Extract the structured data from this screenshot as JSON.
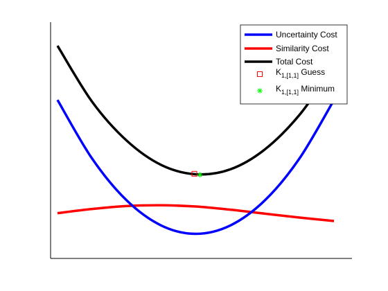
{
  "chart_data": {
    "type": "line",
    "title": "",
    "xlabel": "",
    "ylabel": "",
    "axes": {
      "xticks": false,
      "yticks": false,
      "grid": false
    },
    "x": [
      -1.0,
      -0.75,
      -0.5,
      -0.25,
      0.0,
      0.25,
      0.5,
      0.75,
      1.0
    ],
    "series": [
      {
        "name": "Uncertainty Cost",
        "color": "#0000ff",
        "values": [
          5.44,
          3.06,
          1.36,
          0.34,
          0.0,
          0.34,
          1.36,
          3.06,
          5.44
        ]
      },
      {
        "name": "Similarity Cost",
        "color": "#ff0000",
        "values": [
          0.84,
          1.01,
          1.13,
          1.16,
          1.11,
          0.98,
          0.82,
          0.66,
          0.52
        ]
      },
      {
        "name": "Total Cost",
        "color": "#000000",
        "values": [
          7.64,
          5.37,
          3.79,
          2.8,
          2.42,
          2.62,
          3.43,
          4.83,
          6.8
        ]
      }
    ],
    "markers": [
      {
        "name": "Guess",
        "label_main": "K",
        "label_sub": "1,[1,1]",
        "label_tail": " Guess",
        "symbol": "square",
        "color": "#ff0000",
        "x": -0.01,
        "y": 2.44
      },
      {
        "name": "Minimum",
        "label_main": "K",
        "label_sub": "1,[1,1]",
        "label_tail": " Minimum",
        "symbol": "asterisk",
        "color": "#00ff00",
        "x": 0.03,
        "y": 2.4
      }
    ],
    "xlim": [
      -1.05,
      1.13
    ],
    "ylim": [
      -1.0,
      8.6
    ],
    "legend": "top-right"
  }
}
